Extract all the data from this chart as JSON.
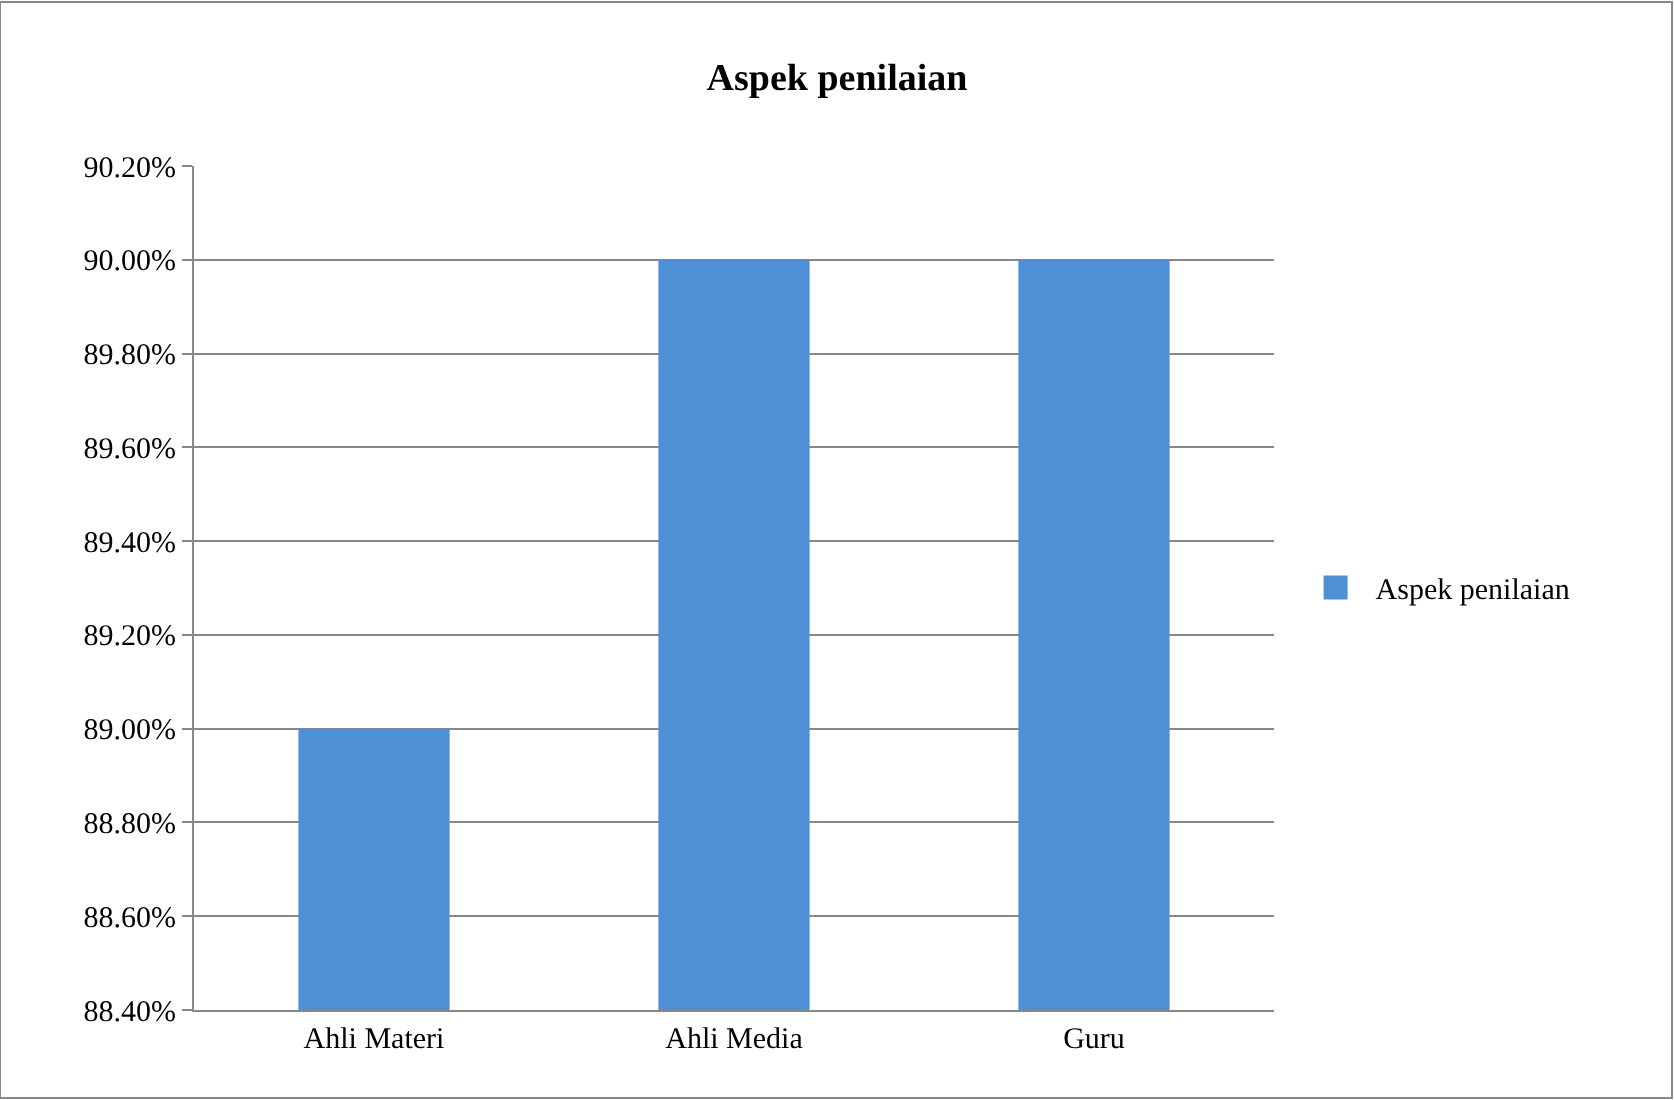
{
  "chart_data": {
    "type": "bar",
    "title": "Aspek penilaian",
    "categories": [
      "Ahli Materi",
      "Ahli Media",
      "Guru"
    ],
    "series": [
      {
        "name": "Aspek penilaian",
        "color": "#4f8fd6",
        "values": [
          89.0,
          90.0,
          90.0
        ]
      }
    ],
    "ylim": [
      88.4,
      90.2
    ],
    "yticks": [
      {
        "value": 88.4,
        "label": "88.40%"
      },
      {
        "value": 88.6,
        "label": "88.60%"
      },
      {
        "value": 88.8,
        "label": "88.80%"
      },
      {
        "value": 89.0,
        "label": "89.00%"
      },
      {
        "value": 89.2,
        "label": "89.20%"
      },
      {
        "value": 89.4,
        "label": "89.40%"
      },
      {
        "value": 89.6,
        "label": "89.60%"
      },
      {
        "value": 89.8,
        "label": "89.80%"
      },
      {
        "value": 90.0,
        "label": "90.00%"
      },
      {
        "value": 90.2,
        "label": "90.20%"
      }
    ],
    "grid": "y",
    "legend": "right"
  }
}
